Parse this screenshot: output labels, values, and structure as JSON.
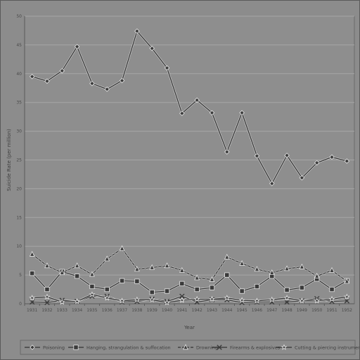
{
  "chart_data": {
    "type": "line",
    "title": "",
    "xlabel": "Year",
    "ylabel": "Suicide Rate (per million)",
    "ylim": [
      0,
      50
    ],
    "yticks": [
      0,
      5,
      10,
      15,
      20,
      25,
      30,
      35,
      40,
      45,
      50
    ],
    "grid": true,
    "legend_position": "bottom",
    "categories": [
      "1931",
      "1932",
      "1933",
      "1934",
      "1935",
      "1936",
      "1937",
      "1938",
      "1939",
      "1940",
      "1941",
      "1942",
      "1943",
      "1944",
      "1945",
      "1946",
      "1947",
      "1948",
      "1949",
      "1950",
      "1951",
      "1952"
    ],
    "series": [
      {
        "name": "Poisoning",
        "marker": "diamond",
        "dash": "",
        "values": [
          39.5,
          38.7,
          40.5,
          44.7,
          38.3,
          37.3,
          38.8,
          47.4,
          44.4,
          41.0,
          33.1,
          35.4,
          33.2,
          26.4,
          33.2,
          25.7,
          20.9,
          25.8,
          21.9,
          24.5,
          25.5,
          24.8
        ]
      },
      {
        "name": "Hanging, strangulation & suffocation",
        "marker": "square",
        "dash": "",
        "values": [
          5.3,
          2.5,
          5.6,
          4.8,
          3.0,
          2.5,
          4.0,
          3.9,
          2.0,
          2.2,
          3.5,
          2.5,
          2.8,
          5.0,
          2.2,
          3.0,
          4.8,
          2.4,
          2.8,
          4.3,
          2.5,
          4.0
        ]
      },
      {
        "name": "Drowning",
        "marker": "triangle",
        "dash": "4,2",
        "values": [
          8.6,
          6.6,
          5.4,
          6.6,
          5.1,
          7.8,
          9.6,
          6.0,
          6.3,
          6.6,
          5.8,
          4.5,
          4.2,
          8.1,
          7.0,
          6.0,
          5.4,
          6.1,
          6.4,
          4.8,
          5.8,
          3.9
        ]
      },
      {
        "name": "Firearms & explosives",
        "marker": "x",
        "dash": "",
        "values": [
          0.3,
          0.2,
          0.6,
          0.4,
          1.3,
          1.3,
          0.3,
          0.4,
          0.8,
          0.4,
          1.3,
          0.3,
          0.7,
          0.7,
          0.2,
          0.3,
          0.3,
          0.3,
          0.5,
          0.9,
          0.4,
          0.5
        ]
      },
      {
        "name": "Cutting & piercing instruments",
        "marker": "star",
        "dash": "",
        "values": [
          1.0,
          1.2,
          0.3,
          0.4,
          1.6,
          1.0,
          0.5,
          0.7,
          0.7,
          0.2,
          0.6,
          0.8,
          0.8,
          1.0,
          0.6,
          0.5,
          0.7,
          1.0,
          0.5,
          0.5,
          0.8,
          1.2
        ]
      }
    ]
  }
}
